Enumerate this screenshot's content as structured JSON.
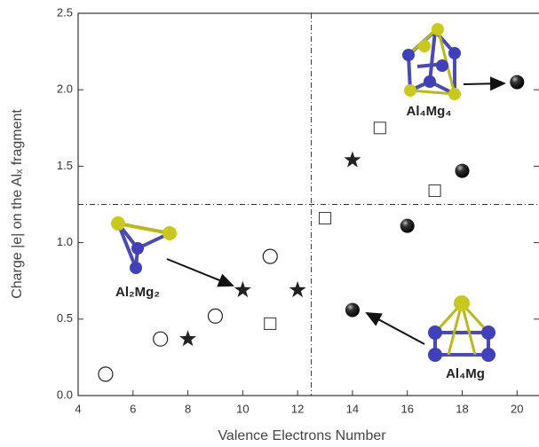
{
  "chart_data": {
    "type": "scatter",
    "xlabel": "Valence Electrons Number",
    "ylabel": "Charge |e| on the Alₓ fragment",
    "xlim": [
      4,
      20.8
    ],
    "ylim": [
      0,
      2.5
    ],
    "xticks": [
      4,
      6,
      8,
      10,
      12,
      14,
      16,
      18,
      20
    ],
    "yticks": [
      {
        "value": 0,
        "label": "0.0"
      },
      0.5,
      {
        "value": 1,
        "label": "1.0"
      },
      1.5,
      {
        "value": 2,
        "label": "2.0"
      },
      2.5
    ],
    "vlines": [
      12.5
    ],
    "hlines": [
      1.25
    ],
    "series": [
      {
        "marker": "open-circle",
        "color": "#222222",
        "x": [
          5,
          7,
          9,
          11
        ],
        "values": [
          0.14,
          0.37,
          0.52,
          0.91
        ]
      },
      {
        "marker": "star",
        "color": "#222222",
        "x": [
          8,
          10,
          12,
          14
        ],
        "values": [
          0.37,
          0.69,
          0.69,
          1.54
        ]
      },
      {
        "marker": "open-square",
        "color": "#444444",
        "x": [
          11,
          13,
          15,
          17
        ],
        "values": [
          0.47,
          1.16,
          1.75,
          1.34
        ]
      },
      {
        "marker": "ball",
        "color": "#111111",
        "x": [
          14,
          16,
          18,
          20
        ],
        "values": [
          0.56,
          1.11,
          1.47,
          2.05
        ]
      }
    ],
    "annotations": [
      "Al₄Mg₄",
      "Al₂Mg₂",
      "Al₄Mg"
    ]
  }
}
